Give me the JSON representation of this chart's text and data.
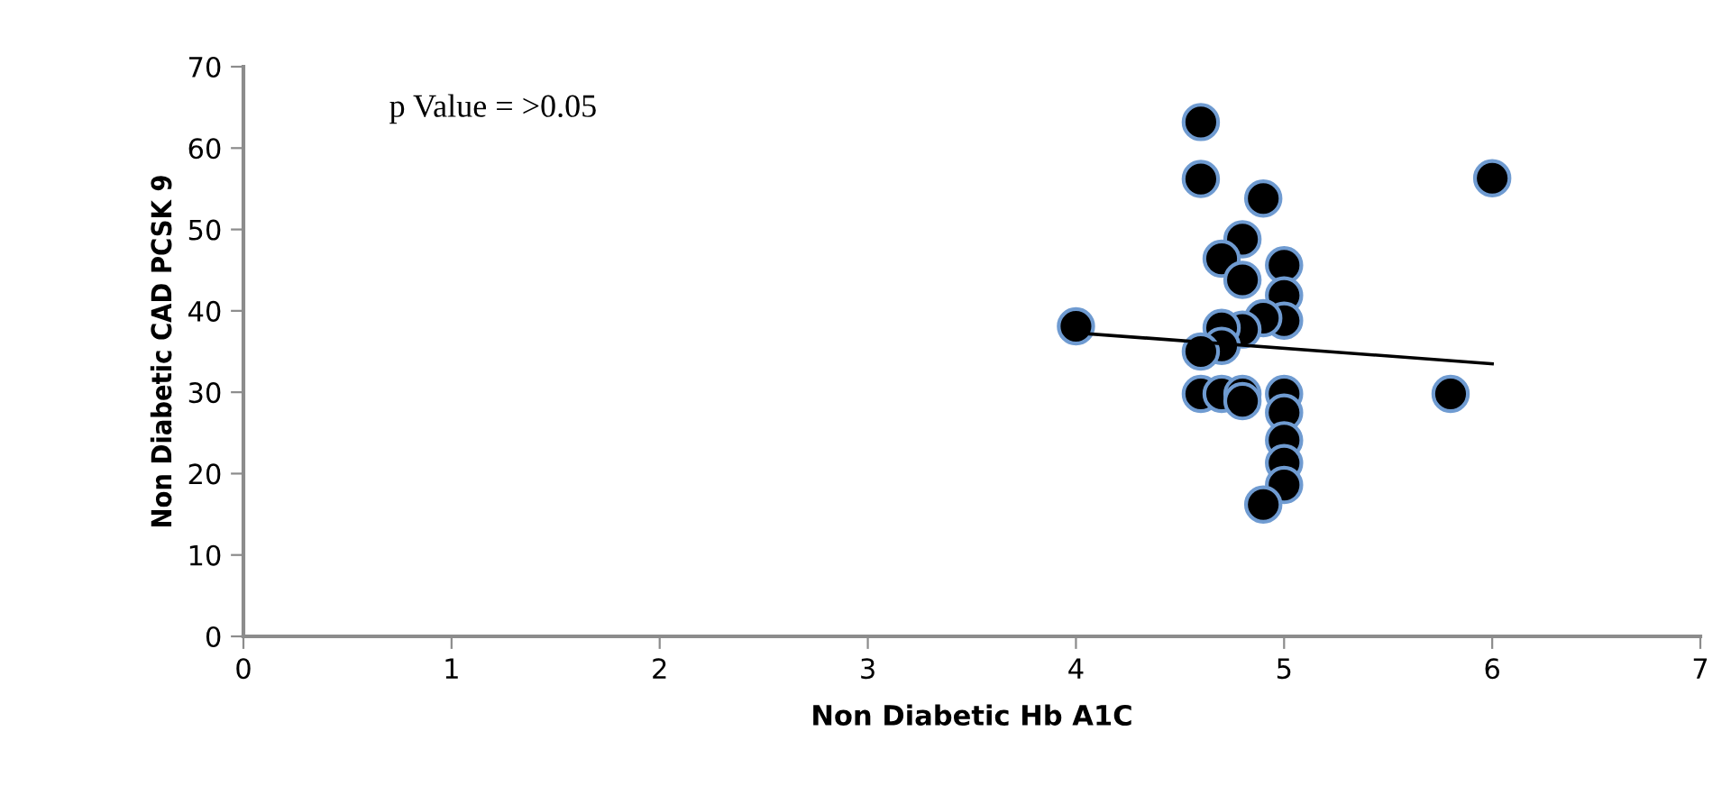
{
  "chart_data": {
    "type": "scatter",
    "xlabel": "Non Diabetic Hb A1C",
    "ylabel": "Non Diabetic CAD PCSK 9",
    "annotations": [
      "p Value = >0.05"
    ],
    "series": [
      {
        "color": "#000000",
        "marker": "circle",
        "x": [
          4.6,
          4.6,
          4.9,
          6.0,
          4.8,
          4.7,
          5.0,
          4.8,
          5.0,
          5.0,
          4.9,
          4.8,
          4.7,
          4.0,
          4.7,
          4.6,
          4.6,
          4.7,
          4.8,
          4.8,
          5.0,
          5.0,
          5.0,
          5.0,
          5.0,
          4.9,
          5.8
        ],
        "values": [
          63.2,
          56.2,
          53.8,
          56.3,
          48.8,
          46.4,
          45.6,
          43.8,
          41.9,
          38.8,
          39.1,
          37.7,
          37.9,
          38.1,
          35.7,
          35.0,
          29.8,
          29.8,
          29.8,
          28.9,
          29.8,
          27.5,
          24.1,
          21.3,
          18.6,
          16.2,
          29.8
        ]
      },
      {
        "type": "line",
        "color": "#000000",
        "marker": "none",
        "x": [
          4.0,
          6.0
        ],
        "values": [
          37.3,
          33.5
        ]
      }
    ],
    "xlim": [
      0,
      7
    ],
    "xticks": [
      0,
      1,
      2,
      3,
      4,
      5,
      6,
      7
    ],
    "ylim": [
      0,
      70
    ],
    "yticks": [
      0,
      10,
      20,
      30,
      40,
      50,
      60,
      70
    ],
    "grid": false,
    "legend": false
  }
}
